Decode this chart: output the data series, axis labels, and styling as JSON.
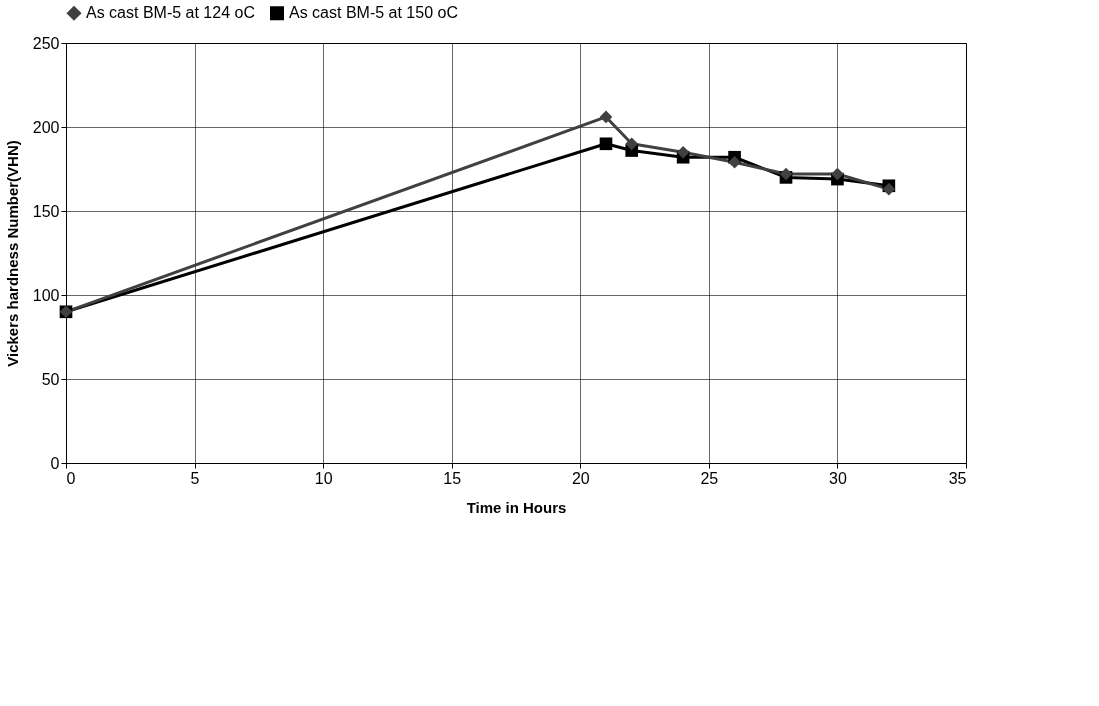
{
  "chart_data": {
    "type": "line",
    "xlabel": "Time in Hours",
    "ylabel": "Vickers hardness Number(VHN)",
    "x": [
      0,
      21,
      22,
      24,
      26,
      28,
      30,
      32
    ],
    "series": [
      {
        "name": "As cast BM-5 at 124 oC",
        "color": "#404040",
        "marker": "diamond",
        "values": [
          90,
          206,
          190,
          185,
          179,
          172,
          172,
          163
        ]
      },
      {
        "name": "As cast BM-5 at 150 oC",
        "color": "#000000",
        "marker": "square",
        "values": [
          90,
          190,
          186,
          182,
          182,
          170,
          169,
          165
        ]
      }
    ],
    "xlim": [
      0,
      35
    ],
    "xticks": [
      0,
      5,
      10,
      15,
      20,
      25,
      30,
      35
    ],
    "ylim": [
      0,
      250
    ],
    "yticks": [
      0,
      50,
      100,
      150,
      200,
      250
    ],
    "grid": true,
    "legend": "top",
    "line_style": "solid"
  }
}
